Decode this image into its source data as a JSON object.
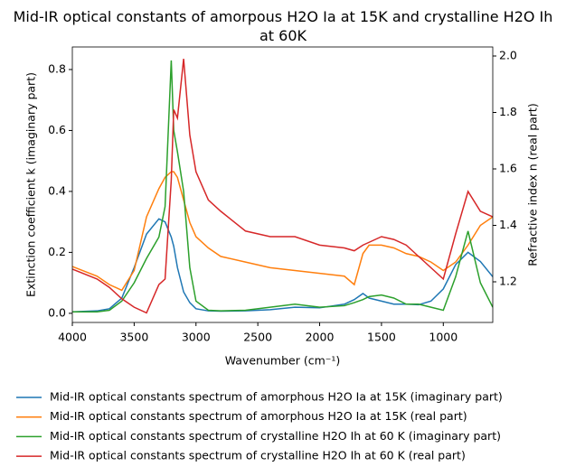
{
  "chart_data": {
    "type": "line",
    "title": "Mid-IR optical constants of amorpous H2O Ia at 15K and crystalline H2O Ih at 60K",
    "xlabel": "Wavenumber (cm⁻¹)",
    "ylabel": "Extinction coefficient k (imaginary part)",
    "y2label": "Refractive index n (real part)",
    "x": [
      4000,
      3800,
      3700,
      3600,
      3500,
      3400,
      3300,
      3250,
      3200,
      3180,
      3150,
      3100,
      3050,
      3000,
      2900,
      2800,
      2600,
      2400,
      2200,
      2000,
      1800,
      1720,
      1650,
      1600,
      1500,
      1400,
      1300,
      1200,
      1100,
      1000,
      900,
      800,
      700,
      600
    ],
    "xlim": [
      4000,
      600
    ],
    "xticks": [
      4000,
      3500,
      3000,
      2500,
      2000,
      1500,
      1000
    ],
    "ylim": [
      -0.03,
      0.874
    ],
    "yticks": [
      {
        "value": 0,
        "label": "0.0"
      },
      0.2,
      0.4,
      0.6,
      0.8
    ],
    "y2lim": [
      1.056,
      2.032
    ],
    "y2ticks": [
      1.2,
      1.4,
      1.6,
      1.8,
      {
        "value": 2,
        "label": "2.0"
      }
    ],
    "legend": "below",
    "series": [
      {
        "name": "Mid-IR optical constants spectrum of amorphous H2O Ia at 15K (imaginary part)",
        "color": "#1f77b4",
        "values": [
          0.005,
          0.008,
          0.015,
          0.05,
          0.15,
          0.26,
          0.31,
          0.3,
          0.25,
          0.22,
          0.15,
          0.07,
          0.035,
          0.015,
          0.008,
          0.007,
          0.008,
          0.012,
          0.02,
          0.018,
          0.03,
          0.045,
          0.065,
          0.05,
          0.04,
          0.03,
          0.03,
          0.028,
          0.04,
          0.08,
          0.16,
          0.2,
          0.17,
          0.12
        ]
      },
      {
        "name": "Mid-IR optical constants spectrum of amorphous H2O Ia at 15K (real part)",
        "color": "#ff7f0e",
        "axis": "y2",
        "values": [
          1.254,
          1.22,
          1.19,
          1.17,
          1.24,
          1.43,
          1.53,
          1.57,
          1.59,
          1.59,
          1.57,
          1.49,
          1.41,
          1.36,
          1.32,
          1.29,
          1.27,
          1.25,
          1.24,
          1.23,
          1.22,
          1.19,
          1.3,
          1.33,
          1.33,
          1.32,
          1.3,
          1.29,
          1.27,
          1.24,
          1.27,
          1.33,
          1.4,
          1.43
        ]
      },
      {
        "name": "Mid-IR optical constants spectrum of crystalline H2O Ih at 60 K (imaginary part)",
        "color": "#2ca02c",
        "values": [
          0.005,
          0.005,
          0.01,
          0.04,
          0.1,
          0.18,
          0.25,
          0.35,
          0.83,
          0.6,
          0.53,
          0.4,
          0.15,
          0.04,
          0.01,
          0.008,
          0.01,
          0.02,
          0.03,
          0.02,
          0.025,
          0.035,
          0.045,
          0.055,
          0.06,
          0.05,
          0.03,
          0.03,
          0.02,
          0.01,
          0.12,
          0.27,
          0.1,
          0.02
        ]
      },
      {
        "name": "Mid-IR optical constants spectrum of crystalline H2O Ih at 60 K (real part)",
        "color": "#d62728",
        "axis": "y2",
        "values": [
          1.245,
          1.21,
          1.18,
          1.14,
          1.11,
          1.09,
          1.19,
          1.21,
          1.56,
          1.81,
          1.78,
          1.99,
          1.72,
          1.59,
          1.49,
          1.45,
          1.38,
          1.36,
          1.36,
          1.33,
          1.32,
          1.31,
          1.33,
          1.34,
          1.36,
          1.35,
          1.33,
          1.29,
          1.25,
          1.21,
          1.37,
          1.52,
          1.45,
          1.43
        ]
      }
    ]
  }
}
